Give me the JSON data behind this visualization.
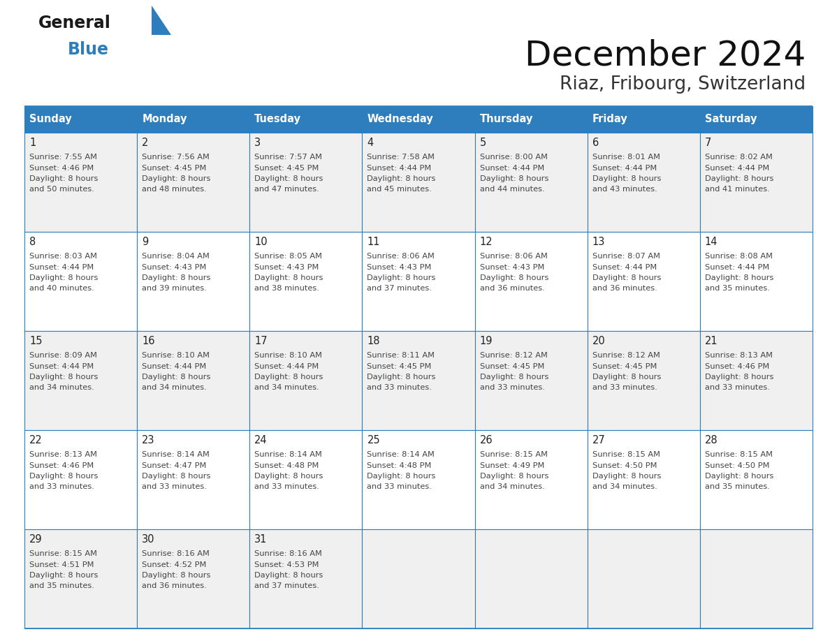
{
  "title": "December 2024",
  "subtitle": "Riaz, Fribourg, Switzerland",
  "days_of_week": [
    "Sunday",
    "Monday",
    "Tuesday",
    "Wednesday",
    "Thursday",
    "Friday",
    "Saturday"
  ],
  "header_bg": "#2E7EBD",
  "header_text": "#FFFFFF",
  "border_color": "#2E7EBD",
  "text_color": "#444444",
  "day_num_color": "#222222",
  "calendar_data": [
    [
      {
        "day": 1,
        "sunrise": "7:55 AM",
        "sunset": "4:46 PM",
        "daylight": "8 hours and 50 minutes"
      },
      {
        "day": 2,
        "sunrise": "7:56 AM",
        "sunset": "4:45 PM",
        "daylight": "8 hours and 48 minutes"
      },
      {
        "day": 3,
        "sunrise": "7:57 AM",
        "sunset": "4:45 PM",
        "daylight": "8 hours and 47 minutes"
      },
      {
        "day": 4,
        "sunrise": "7:58 AM",
        "sunset": "4:44 PM",
        "daylight": "8 hours and 45 minutes"
      },
      {
        "day": 5,
        "sunrise": "8:00 AM",
        "sunset": "4:44 PM",
        "daylight": "8 hours and 44 minutes"
      },
      {
        "day": 6,
        "sunrise": "8:01 AM",
        "sunset": "4:44 PM",
        "daylight": "8 hours and 43 minutes"
      },
      {
        "day": 7,
        "sunrise": "8:02 AM",
        "sunset": "4:44 PM",
        "daylight": "8 hours and 41 minutes"
      }
    ],
    [
      {
        "day": 8,
        "sunrise": "8:03 AM",
        "sunset": "4:44 PM",
        "daylight": "8 hours and 40 minutes"
      },
      {
        "day": 9,
        "sunrise": "8:04 AM",
        "sunset": "4:43 PM",
        "daylight": "8 hours and 39 minutes"
      },
      {
        "day": 10,
        "sunrise": "8:05 AM",
        "sunset": "4:43 PM",
        "daylight": "8 hours and 38 minutes"
      },
      {
        "day": 11,
        "sunrise": "8:06 AM",
        "sunset": "4:43 PM",
        "daylight": "8 hours and 37 minutes"
      },
      {
        "day": 12,
        "sunrise": "8:06 AM",
        "sunset": "4:43 PM",
        "daylight": "8 hours and 36 minutes"
      },
      {
        "day": 13,
        "sunrise": "8:07 AM",
        "sunset": "4:44 PM",
        "daylight": "8 hours and 36 minutes"
      },
      {
        "day": 14,
        "sunrise": "8:08 AM",
        "sunset": "4:44 PM",
        "daylight": "8 hours and 35 minutes"
      }
    ],
    [
      {
        "day": 15,
        "sunrise": "8:09 AM",
        "sunset": "4:44 PM",
        "daylight": "8 hours and 34 minutes"
      },
      {
        "day": 16,
        "sunrise": "8:10 AM",
        "sunset": "4:44 PM",
        "daylight": "8 hours and 34 minutes"
      },
      {
        "day": 17,
        "sunrise": "8:10 AM",
        "sunset": "4:44 PM",
        "daylight": "8 hours and 34 minutes"
      },
      {
        "day": 18,
        "sunrise": "8:11 AM",
        "sunset": "4:45 PM",
        "daylight": "8 hours and 33 minutes"
      },
      {
        "day": 19,
        "sunrise": "8:12 AM",
        "sunset": "4:45 PM",
        "daylight": "8 hours and 33 minutes"
      },
      {
        "day": 20,
        "sunrise": "8:12 AM",
        "sunset": "4:45 PM",
        "daylight": "8 hours and 33 minutes"
      },
      {
        "day": 21,
        "sunrise": "8:13 AM",
        "sunset": "4:46 PM",
        "daylight": "8 hours and 33 minutes"
      }
    ],
    [
      {
        "day": 22,
        "sunrise": "8:13 AM",
        "sunset": "4:46 PM",
        "daylight": "8 hours and 33 minutes"
      },
      {
        "day": 23,
        "sunrise": "8:14 AM",
        "sunset": "4:47 PM",
        "daylight": "8 hours and 33 minutes"
      },
      {
        "day": 24,
        "sunrise": "8:14 AM",
        "sunset": "4:48 PM",
        "daylight": "8 hours and 33 minutes"
      },
      {
        "day": 25,
        "sunrise": "8:14 AM",
        "sunset": "4:48 PM",
        "daylight": "8 hours and 33 minutes"
      },
      {
        "day": 26,
        "sunrise": "8:15 AM",
        "sunset": "4:49 PM",
        "daylight": "8 hours and 34 minutes"
      },
      {
        "day": 27,
        "sunrise": "8:15 AM",
        "sunset": "4:50 PM",
        "daylight": "8 hours and 34 minutes"
      },
      {
        "day": 28,
        "sunrise": "8:15 AM",
        "sunset": "4:50 PM",
        "daylight": "8 hours and 35 minutes"
      }
    ],
    [
      {
        "day": 29,
        "sunrise": "8:15 AM",
        "sunset": "4:51 PM",
        "daylight": "8 hours and 35 minutes"
      },
      {
        "day": 30,
        "sunrise": "8:16 AM",
        "sunset": "4:52 PM",
        "daylight": "8 hours and 36 minutes"
      },
      {
        "day": 31,
        "sunrise": "8:16 AM",
        "sunset": "4:53 PM",
        "daylight": "8 hours and 37 minutes"
      },
      null,
      null,
      null,
      null
    ]
  ],
  "logo_color_general": "#1a1a1a",
  "logo_color_blue": "#2E7EBD",
  "logo_triangle_color": "#2E7EBD",
  "fig_width": 11.88,
  "fig_height": 9.18,
  "dpi": 100
}
